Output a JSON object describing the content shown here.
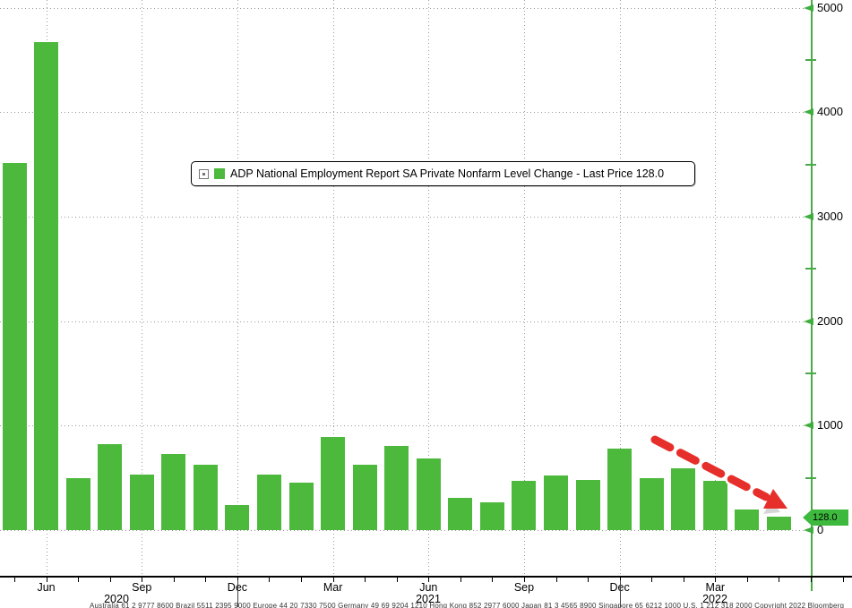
{
  "chart_data": {
    "type": "bar",
    "title": "ADP National Employment Report SA Private Nonfarm Level Change - Last Price 128.0",
    "legend_text": "ADP National Employment Report SA Private Nonfarm Level Change - Last Price 128.0",
    "last_price": 128.0,
    "last_price_label": "128.0",
    "categories": [
      "May 2020",
      "Jun 2020",
      "Jul 2020",
      "Aug 2020",
      "Sep 2020",
      "Oct 2020",
      "Nov 2020",
      "Dec 2020",
      "Jan 2021",
      "Feb 2021",
      "Mar 2021",
      "Apr 2021",
      "May 2021",
      "Jun 2021",
      "Jul 2021",
      "Aug 2021",
      "Sep 2021",
      "Oct 2021",
      "Nov 2021",
      "Dec 2021",
      "Jan 2022",
      "Feb 2022",
      "Mar 2022",
      "Apr 2022",
      "May 2022"
    ],
    "values": [
      3515,
      4670,
      500,
      825,
      530,
      730,
      625,
      240,
      530,
      455,
      890,
      625,
      805,
      685,
      310,
      265,
      475,
      525,
      480,
      780,
      500,
      590,
      470,
      200,
      128
    ],
    "ylabel": "",
    "xlabel": "",
    "ylim": [
      -440,
      5080
    ],
    "y_axis": {
      "side": "right",
      "major_ticks": [
        0,
        1000,
        2000,
        3000,
        4000,
        5000
      ],
      "major_labels": [
        "0",
        "1000",
        "2000",
        "3000",
        "4000",
        "5000"
      ],
      "minor_ticks": [
        500,
        1500,
        2500,
        3500,
        4500
      ]
    },
    "x_axis": {
      "quarter_labels": [
        "Jun",
        "Sep",
        "Dec",
        "Mar",
        "Jun",
        "Sep",
        "Dec",
        "Mar"
      ],
      "year_labels": [
        "2020",
        "2021",
        "2022"
      ]
    },
    "grid": "dotted, horizontal at each 1000 and at 0, vertical at quarterly ticks",
    "legend_position": "top-center boxed overlay",
    "annotation": "thick red dashed arrow sloping down-right over the last six bars",
    "colors": {
      "bar": "#4db93c",
      "axis_green": "#4aa94a",
      "tag_green": "#3dba3d",
      "arrow_red": "#e62e2a",
      "grid_gray": "#9a9a9a",
      "text": "#000000"
    }
  },
  "footer": {
    "text": "Australia 61 2 9777 8600 Brazil 5511 2395 9000 Europe 44 20 7330 7500 Germany 49 69 9204 1210 Hong Kong 852 2977 6000 Japan 81 3 4565 8900 Singapore 65 6212 1000 U.S. 1 212 318 2000 Copyright 2022 Bloomberg Finance L.P."
  }
}
